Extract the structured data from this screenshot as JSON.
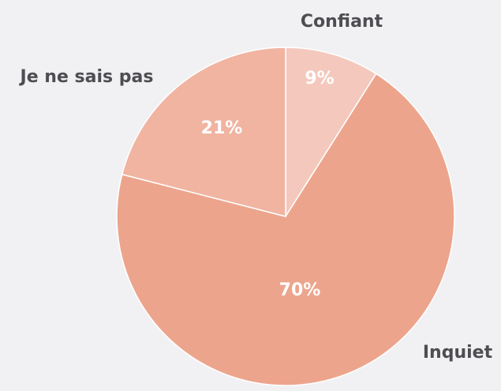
{
  "chart_data": {
    "type": "pie",
    "categories": [
      "Confiant",
      "Inquiet",
      "Je ne sais pas"
    ],
    "values": [
      9,
      70,
      21
    ],
    "value_labels": [
      "9%",
      "70%",
      "21%"
    ],
    "colors": [
      "#f4c8bc",
      "#eca58c",
      "#f0b4a1"
    ]
  }
}
